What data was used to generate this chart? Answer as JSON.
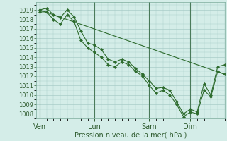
{
  "background_color": "#d4ede8",
  "grid_color": "#a8ccc8",
  "line_color": "#2d6b2d",
  "marker_color": "#2d6b2d",
  "xlabel": "Pression niveau de la mer( hPa )",
  "ylim": [
    1007.5,
    1019.8
  ],
  "yticks": [
    1008,
    1009,
    1010,
    1011,
    1012,
    1013,
    1014,
    1015,
    1016,
    1017,
    1018,
    1019
  ],
  "day_labels": [
    "Ven",
    "Lun",
    "Sam",
    "Dim"
  ],
  "day_positions": [
    0,
    8,
    16,
    22
  ],
  "vline_positions": [
    0,
    8,
    16,
    22
  ],
  "xlim": [
    -0.5,
    27
  ],
  "trend_x": [
    0,
    27
  ],
  "trend_y": [
    1019.0,
    1012.2
  ],
  "s1_x": [
    0,
    1,
    2,
    3,
    4,
    5,
    6,
    7,
    8,
    9,
    10,
    11,
    12,
    13,
    14,
    15,
    16,
    17,
    18,
    19,
    20,
    21,
    22,
    23,
    24,
    25,
    26,
    27
  ],
  "s1_y": [
    1019.0,
    1019.2,
    1018.5,
    1018.2,
    1019.0,
    1018.3,
    1016.8,
    1015.5,
    1015.3,
    1014.8,
    1013.8,
    1013.5,
    1013.8,
    1013.5,
    1012.8,
    1012.2,
    1011.5,
    1010.7,
    1010.8,
    1010.5,
    1009.3,
    1008.0,
    1008.5,
    1008.2,
    1011.2,
    1010.0,
    1013.0,
    1013.2
  ],
  "s2_x": [
    0,
    1,
    2,
    3,
    4,
    5,
    6,
    7,
    8,
    9,
    10,
    11,
    12,
    13,
    14,
    15,
    16,
    17,
    18,
    19,
    20,
    21,
    22,
    23,
    24,
    25,
    26,
    27
  ],
  "s2_y": [
    1018.8,
    1018.8,
    1018.0,
    1017.5,
    1018.5,
    1017.8,
    1015.8,
    1015.0,
    1014.5,
    1014.0,
    1013.2,
    1013.0,
    1013.5,
    1013.2,
    1012.5,
    1012.0,
    1011.0,
    1010.2,
    1010.5,
    1010.0,
    1009.0,
    1007.7,
    1008.2,
    1008.0,
    1010.5,
    1009.8,
    1012.5,
    1012.2
  ]
}
